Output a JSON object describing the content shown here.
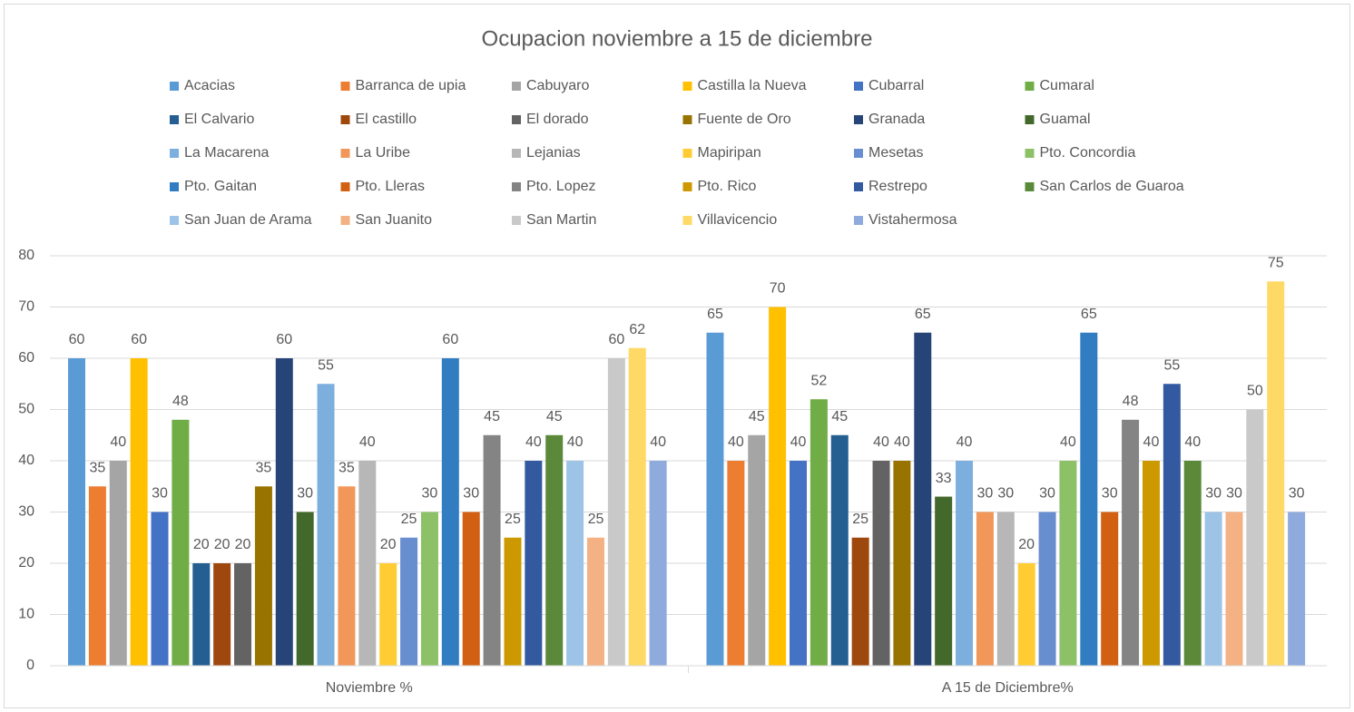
{
  "chart_data": {
    "type": "bar",
    "title": "Ocupacion noviembre a 15 de diciembre",
    "categories": [
      "Noviembre %",
      "A 15 de Diciembre%"
    ],
    "ylim": [
      0,
      80
    ],
    "yticks": [
      0,
      10,
      20,
      30,
      40,
      50,
      60,
      70,
      80
    ],
    "grid": true,
    "legend": "top",
    "series": [
      {
        "name": "Acacias",
        "color": "#5b9bd5",
        "values": [
          60,
          65
        ]
      },
      {
        "name": "Barranca de upia",
        "color": "#ed7d31",
        "values": [
          35,
          40
        ]
      },
      {
        "name": "Cabuyaro",
        "color": "#a5a5a5",
        "values": [
          40,
          45
        ]
      },
      {
        "name": "Castilla la Nueva",
        "color": "#ffc000",
        "values": [
          60,
          70
        ]
      },
      {
        "name": "Cubarral",
        "color": "#4472c4",
        "values": [
          30,
          40
        ]
      },
      {
        "name": "Cumaral",
        "color": "#70ad47",
        "values": [
          48,
          52
        ]
      },
      {
        "name": "El Calvario",
        "color": "#255e91",
        "values": [
          20,
          45
        ]
      },
      {
        "name": "El castillo",
        "color": "#9e480e",
        "values": [
          20,
          25
        ]
      },
      {
        "name": "El dorado",
        "color": "#636363",
        "values": [
          20,
          40
        ]
      },
      {
        "name": "Fuente de Oro",
        "color": "#997300",
        "values": [
          35,
          40
        ]
      },
      {
        "name": "Granada",
        "color": "#264478",
        "values": [
          60,
          65
        ]
      },
      {
        "name": "Guamal",
        "color": "#43682b",
        "values": [
          30,
          33
        ]
      },
      {
        "name": "La Macarena",
        "color": "#7cafdd",
        "values": [
          55,
          40
        ]
      },
      {
        "name": "La Uribe",
        "color": "#f1975a",
        "values": [
          35,
          30
        ]
      },
      {
        "name": "Lejanias",
        "color": "#b7b7b7",
        "values": [
          40,
          30
        ]
      },
      {
        "name": "Mapiripan",
        "color": "#ffcd33",
        "values": [
          20,
          20
        ]
      },
      {
        "name": "Mesetas",
        "color": "#698ed0",
        "values": [
          25,
          30
        ]
      },
      {
        "name": "Pto. Concordia",
        "color": "#8cc168",
        "values": [
          30,
          40
        ]
      },
      {
        "name": "Pto. Gaitan",
        "color": "#327dc2",
        "values": [
          60,
          65
        ]
      },
      {
        "name": "Pto. Lleras",
        "color": "#d26012",
        "values": [
          30,
          30
        ]
      },
      {
        "name": "Pto. Lopez",
        "color": "#848484",
        "values": [
          45,
          48
        ]
      },
      {
        "name": "Pto. Rico",
        "color": "#cc9a00",
        "values": [
          25,
          40
        ]
      },
      {
        "name": "Restrepo",
        "color": "#335aa1",
        "values": [
          40,
          55
        ]
      },
      {
        "name": "San Carlos de Guaroa",
        "color": "#5a8a39",
        "values": [
          45,
          40
        ]
      },
      {
        "name": "San Juan de Arama",
        "color": "#9dc3e6",
        "values": [
          40,
          30
        ]
      },
      {
        "name": "San Juanito",
        "color": "#f4b183",
        "values": [
          25,
          30
        ]
      },
      {
        "name": "San Martin",
        "color": "#c9c9c9",
        "values": [
          60,
          50
        ]
      },
      {
        "name": "Villavicencio",
        "color": "#ffd966",
        "values": [
          62,
          75
        ]
      },
      {
        "name": "Vistahermosa",
        "color": "#8faadc",
        "values": [
          40,
          30
        ]
      }
    ]
  }
}
